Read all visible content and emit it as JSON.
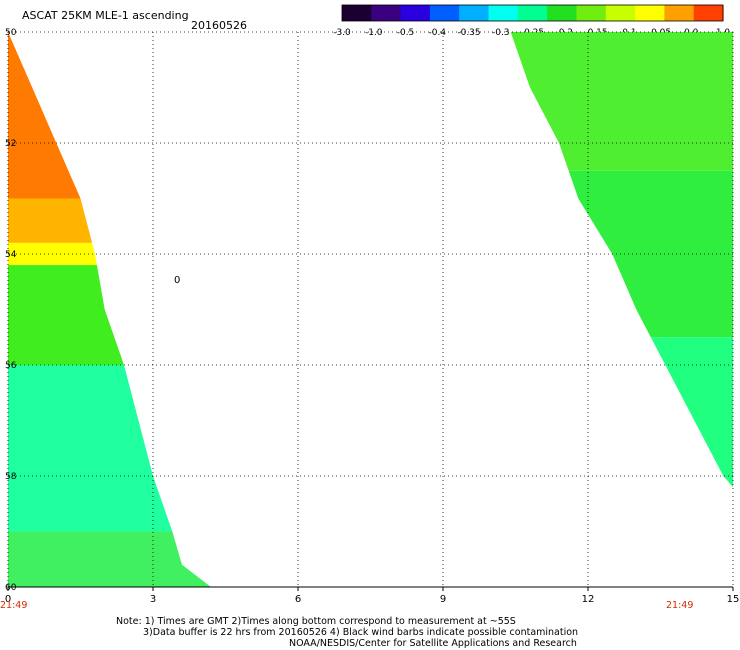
{
  "header": {
    "title": "ASCAT 25KM MLE-1 ascending",
    "date": "20160526"
  },
  "colorbar": {
    "labels": [
      "-3.0",
      "-1.0",
      "-0.5",
      "-0.4",
      "-0.35",
      "-0.3",
      "-0.25",
      "-0.2",
      "-0.15",
      "-0.1",
      "-0.05",
      "0.0",
      "1.0"
    ],
    "colors": [
      "#1a0030",
      "#3a0080",
      "#2a00e0",
      "#0060ff",
      "#00b0ff",
      "#00ffee",
      "#00ff90",
      "#20e020",
      "#70ee10",
      "#c8ff00",
      "#ffff00",
      "#ffa000",
      "#ff4000"
    ]
  },
  "chart_data": {
    "type": "heatmap",
    "x_ticks": [
      "0",
      "3",
      "6",
      "9",
      "12",
      "15"
    ],
    "y_ticks": [
      "50",
      "52",
      "54",
      "56",
      "58",
      "60"
    ],
    "xlim": [
      0,
      15
    ],
    "ylim": [
      50,
      60
    ],
    "grid": true,
    "swaths": [
      {
        "side": "left",
        "edge": [
          [
            0,
            50.0
          ],
          [
            0.5,
            51.0
          ],
          [
            1.0,
            52.0
          ],
          [
            1.5,
            53.0
          ],
          [
            1.8,
            54.0
          ],
          [
            2.0,
            55.0
          ],
          [
            2.4,
            56.0
          ],
          [
            2.7,
            57.0
          ],
          [
            3.0,
            58.0
          ],
          [
            3.4,
            59.0
          ],
          [
            3.6,
            59.6
          ],
          [
            4.2,
            60.0
          ]
        ],
        "bands": [
          {
            "y": [
              50.0,
              53.0
            ],
            "color": "#ff7a00"
          },
          {
            "y": [
              53.0,
              53.8
            ],
            "color": "#ffb400"
          },
          {
            "y": [
              53.8,
              54.2
            ],
            "color": "#ffff00"
          },
          {
            "y": [
              54.2,
              56.0
            ],
            "color": "#40ee20"
          },
          {
            "y": [
              56.0,
              59.0
            ],
            "color": "#20ffa0"
          },
          {
            "y": [
              59.0,
              60.0
            ],
            "color": "#40f060"
          }
        ]
      },
      {
        "side": "right",
        "edge": [
          [
            10.4,
            50.0
          ],
          [
            10.8,
            51.0
          ],
          [
            11.4,
            52.0
          ],
          [
            11.8,
            53.0
          ],
          [
            12.5,
            54.0
          ],
          [
            13.0,
            55.0
          ],
          [
            13.6,
            56.0
          ],
          [
            14.2,
            57.0
          ],
          [
            14.8,
            58.0
          ],
          [
            15.0,
            58.2
          ]
        ],
        "bands": [
          {
            "y": [
              50.0,
              52.5
            ],
            "color": "#50ee30"
          },
          {
            "y": [
              52.5,
              55.5
            ],
            "color": "#30ee40"
          },
          {
            "y": [
              55.5,
              58.2
            ],
            "color": "#20ff80"
          }
        ]
      }
    ],
    "annotations": [
      {
        "x": 3.5,
        "y": 54.45,
        "text": "0"
      }
    ]
  },
  "times": {
    "left": "21:49",
    "right": "21:49"
  },
  "notes": [
    "Note: 1) Times are GMT 2)Times along bottom correspond to measurement at ~55S",
    "3)Data buffer is 22 hrs from 20160526 4) Black wind barbs indicate possible contamination",
    "NOAA/NESDIS/Center for Satellite Applications and Research"
  ]
}
